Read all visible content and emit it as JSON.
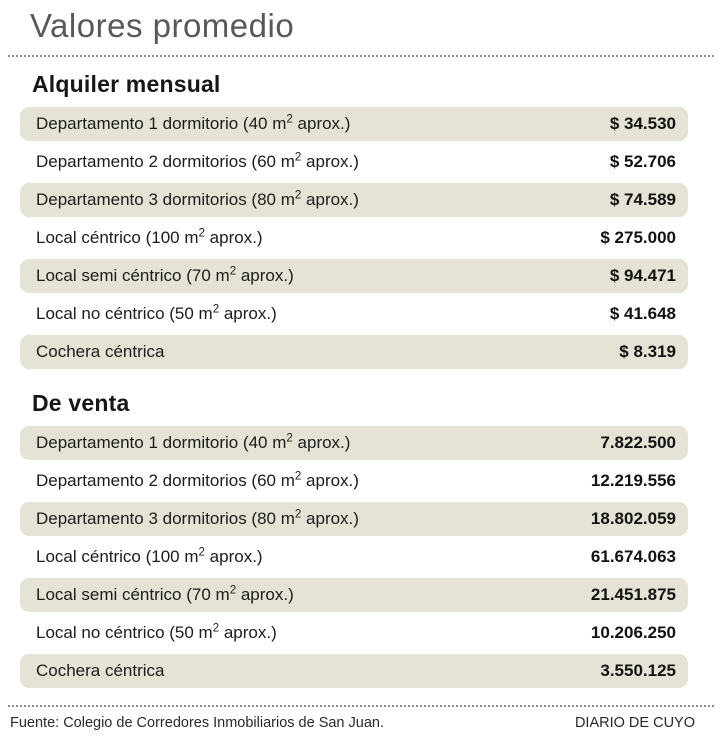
{
  "title": "Valores promedio",
  "colors": {
    "stripe_background": "#e5e2d6",
    "title_gray": "#58585a",
    "body_text": "#1c1c1a",
    "dotted_rule": "#8b8b8b"
  },
  "sections": [
    {
      "heading": "Alquiler mensual",
      "rows": [
        {
          "label_pre": "Departamento 1 dormitorio (40 m",
          "label_sup": "2",
          "label_post": " aprox.)",
          "value": "$ 34.530"
        },
        {
          "label_pre": "Departamento 2 dormitorios (60 m",
          "label_sup": "2",
          "label_post": " aprox.)",
          "value": "$ 52.706"
        },
        {
          "label_pre": "Departamento 3 dormitorios (80 m",
          "label_sup": "2",
          "label_post": " aprox.)",
          "value": "$ 74.589"
        },
        {
          "label_pre": "Local céntrico (100 m",
          "label_sup": "2",
          "label_post": " aprox.)",
          "value": "$ 275.000"
        },
        {
          "label_pre": "Local semi céntrico (70 m",
          "label_sup": "2",
          "label_post": " aprox.)",
          "value": "$ 94.471"
        },
        {
          "label_pre": "Local no céntrico (50 m",
          "label_sup": "2",
          "label_post": " aprox.)",
          "value": "$ 41.648"
        },
        {
          "label_pre": "Cochera céntrica",
          "label_sup": "",
          "label_post": "",
          "value": "$ 8.319"
        }
      ]
    },
    {
      "heading": "De venta",
      "rows": [
        {
          "label_pre": "Departamento 1 dormitorio (40 m",
          "label_sup": "2",
          "label_post": " aprox.)",
          "value": "7.822.500"
        },
        {
          "label_pre": "Departamento 2 dormitorios (60 m",
          "label_sup": "2",
          "label_post": " aprox.)",
          "value": "12.219.556"
        },
        {
          "label_pre": "Departamento 3 dormitorios (80 m",
          "label_sup": "2",
          "label_post": " aprox.)",
          "value": "18.802.059"
        },
        {
          "label_pre": "Local céntrico (100 m",
          "label_sup": "2",
          "label_post": " aprox.)",
          "value": "61.674.063"
        },
        {
          "label_pre": "Local semi céntrico (70 m",
          "label_sup": "2",
          "label_post": " aprox.)",
          "value": "21.451.875"
        },
        {
          "label_pre": "Local no céntrico (50 m",
          "label_sup": "2",
          "label_post": " aprox.)",
          "value": "10.206.250"
        },
        {
          "label_pre": "Cochera céntrica",
          "label_sup": "",
          "label_post": "",
          "value": "3.550.125"
        }
      ]
    }
  ],
  "footer": {
    "source": "Fuente: Colegio de Corredores Inmobiliarios de San Juan.",
    "credit": "DIARIO DE CUYO"
  },
  "chart_data": {
    "type": "table",
    "title": "Valores promedio",
    "sections": [
      {
        "name": "Alquiler mensual",
        "rows": [
          [
            "Departamento 1 dormitorio (40 m² aprox.)",
            "$ 34.530"
          ],
          [
            "Departamento 2 dormitorios (60 m² aprox.)",
            "$ 52.706"
          ],
          [
            "Departamento 3 dormitorios (80 m² aprox.)",
            "$ 74.589"
          ],
          [
            "Local céntrico (100 m² aprox.)",
            "$ 275.000"
          ],
          [
            "Local semi céntrico (70 m² aprox.)",
            "$ 94.471"
          ],
          [
            "Local no céntrico (50 m² aprox.)",
            "$ 41.648"
          ],
          [
            "Cochera céntrica",
            "$ 8.319"
          ]
        ]
      },
      {
        "name": "De venta",
        "rows": [
          [
            "Departamento 1 dormitorio (40 m² aprox.)",
            "7.822.500"
          ],
          [
            "Departamento 2 dormitorios (60 m² aprox.)",
            "12.219.556"
          ],
          [
            "Departamento 3 dormitorios (80 m² aprox.)",
            "18.802.059"
          ],
          [
            "Local céntrico (100 m² aprox.)",
            "61.674.063"
          ],
          [
            "Local semi céntrico (70 m² aprox.)",
            "21.451.875"
          ],
          [
            "Local no céntrico (50 m² aprox.)",
            "10.206.250"
          ],
          [
            "Cochera céntrica",
            "3.550.125"
          ]
        ]
      }
    ],
    "source": "Fuente: Colegio de Corredores Inmobiliarios de San Juan.",
    "credit": "DIARIO DE CUYO"
  }
}
